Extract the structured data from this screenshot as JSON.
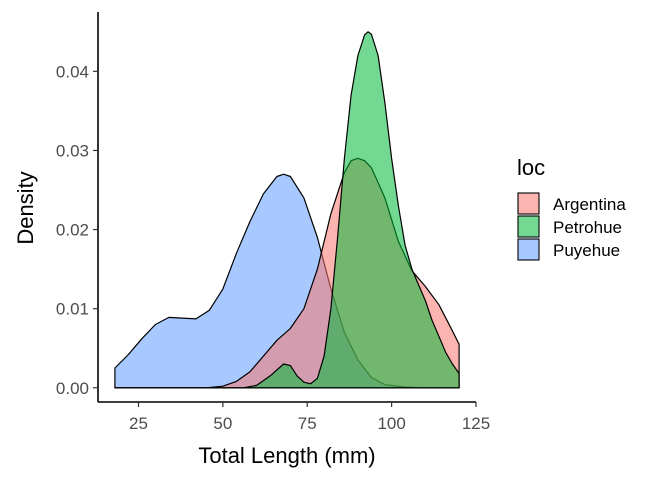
{
  "chart_data": {
    "type": "area",
    "xlabel": "Total Length (mm)",
    "ylabel": "Density",
    "xlim": [
      13,
      125
    ],
    "ylim": [
      -0.0018,
      0.0475
    ],
    "x_ticks": [
      25,
      50,
      75,
      100,
      125
    ],
    "x_tick_labels": [
      "25",
      "50",
      "75",
      "100",
      "125"
    ],
    "y_ticks": [
      0.0,
      0.01,
      0.02,
      0.03,
      0.04
    ],
    "y_tick_labels": [
      "0.00",
      "0.01",
      "0.02",
      "0.03",
      "0.04"
    ],
    "grid": false,
    "legend": {
      "title": "loc",
      "position": "right"
    },
    "fill_opacity": 0.55,
    "series": [
      {
        "name": "Puyehue",
        "color": "#619CFF",
        "points": [
          [
            18,
            0.0025
          ],
          [
            22,
            0.0042
          ],
          [
            26,
            0.0062
          ],
          [
            30,
            0.008
          ],
          [
            34,
            0.0089
          ],
          [
            38,
            0.0088
          ],
          [
            42,
            0.0087
          ],
          [
            46,
            0.0098
          ],
          [
            50,
            0.0125
          ],
          [
            54,
            0.017
          ],
          [
            58,
            0.021
          ],
          [
            62,
            0.0245
          ],
          [
            66,
            0.0267
          ],
          [
            68,
            0.027
          ],
          [
            70,
            0.0267
          ],
          [
            74,
            0.024
          ],
          [
            78,
            0.019
          ],
          [
            82,
            0.0125
          ],
          [
            86,
            0.007
          ],
          [
            90,
            0.0035
          ],
          [
            94,
            0.0013
          ],
          [
            98,
            0.0004
          ],
          [
            104,
            0.0001
          ],
          [
            110,
            0.0
          ],
          [
            120,
            0.0
          ]
        ]
      },
      {
        "name": "Argentina",
        "color": "#F8766D",
        "points": [
          [
            18,
            0.0
          ],
          [
            45,
            0.0
          ],
          [
            50,
            0.0002
          ],
          [
            54,
            0.0008
          ],
          [
            58,
            0.002
          ],
          [
            62,
            0.004
          ],
          [
            66,
            0.006
          ],
          [
            70,
            0.0075
          ],
          [
            74,
            0.01
          ],
          [
            78,
            0.015
          ],
          [
            82,
            0.022
          ],
          [
            86,
            0.0272
          ],
          [
            88,
            0.0287
          ],
          [
            90,
            0.029
          ],
          [
            92,
            0.0287
          ],
          [
            94,
            0.0278
          ],
          [
            98,
            0.024
          ],
          [
            102,
            0.0185
          ],
          [
            106,
            0.0148
          ],
          [
            110,
            0.0128
          ],
          [
            114,
            0.0105
          ],
          [
            118,
            0.0072
          ],
          [
            120,
            0.0055
          ]
        ]
      },
      {
        "name": "Petrohue",
        "color": "#00BA38",
        "points": [
          [
            18,
            0.0
          ],
          [
            56,
            0.0
          ],
          [
            60,
            0.0003
          ],
          [
            64,
            0.0015
          ],
          [
            68,
            0.003
          ],
          [
            70,
            0.0028
          ],
          [
            72,
            0.0015
          ],
          [
            74,
            0.0007
          ],
          [
            76,
            0.0005
          ],
          [
            78,
            0.0012
          ],
          [
            80,
            0.004
          ],
          [
            82,
            0.01
          ],
          [
            84,
            0.019
          ],
          [
            86,
            0.029
          ],
          [
            88,
            0.037
          ],
          [
            90,
            0.042
          ],
          [
            92,
            0.0446
          ],
          [
            93,
            0.045
          ],
          [
            94,
            0.0447
          ],
          [
            96,
            0.042
          ],
          [
            98,
            0.036
          ],
          [
            100,
            0.029
          ],
          [
            102,
            0.023
          ],
          [
            104,
            0.018
          ],
          [
            106,
            0.015
          ],
          [
            108,
            0.013
          ],
          [
            110,
            0.011
          ],
          [
            112,
            0.0085
          ],
          [
            114,
            0.0065
          ],
          [
            116,
            0.0045
          ],
          [
            118,
            0.003
          ],
          [
            120,
            0.0018
          ]
        ]
      }
    ],
    "legend_order": [
      "Argentina",
      "Petrohue",
      "Puyehue"
    ]
  }
}
